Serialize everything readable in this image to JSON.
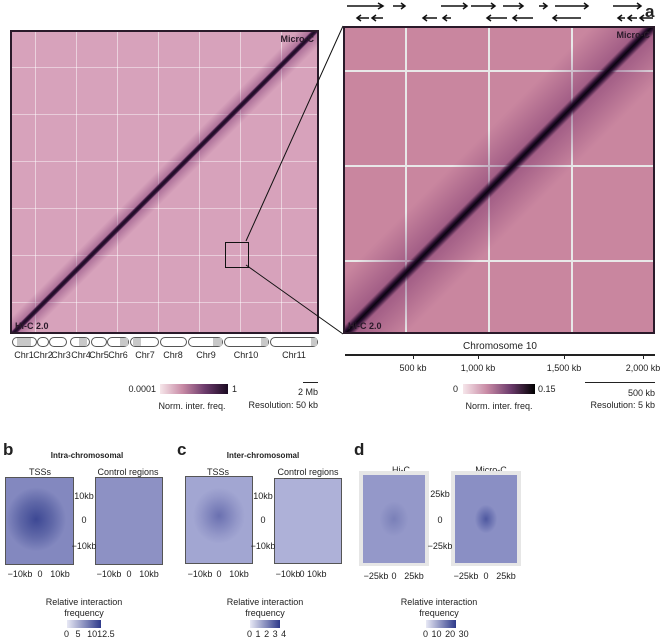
{
  "panel_a": {
    "label": "a",
    "left_map": {
      "top_label": "Micro-C",
      "bottom_label": "Hi-C 2.0",
      "chromosomes": [
        "Chr1",
        "Chr2",
        "Chr3",
        "Chr4",
        "Chr5",
        "Chr6",
        "Chr7",
        "Chr8",
        "Chr9",
        "Chr10",
        "Chr11"
      ],
      "colorbar": {
        "min": "0.0001",
        "max": "1",
        "title": "Norm. inter. freq."
      },
      "scale_bar": "2 Mb",
      "resolution": "Resolution: 50 kb"
    },
    "right_map": {
      "top_label": "Micro-C",
      "bottom_label": "Hi-C 2.0",
      "axis_title": "Chromosome 10",
      "ticks": [
        "500 kb",
        "1,000 kb",
        "1,500 kb",
        "2,000 kb"
      ],
      "colorbar": {
        "min": "0",
        "max": "0.15",
        "title": "Norm. inter. freq."
      },
      "scale_bar": "500 kb",
      "resolution": "Resolution: 5 kb"
    }
  },
  "panel_b": {
    "label": "b",
    "title": "Intra-chromosomal",
    "sub1": "TSSs",
    "sub2": "Control regions",
    "yticks": [
      "10kb",
      "0",
      "−10kb"
    ],
    "xticks": [
      "−10kb",
      "0",
      "10kb"
    ],
    "legend_title1": "Relative interaction",
    "legend_title2": "frequency",
    "legend_ticks": [
      "0",
      "5",
      "10",
      "12.5"
    ]
  },
  "panel_c": {
    "label": "c",
    "title": "Inter-chromosomal",
    "sub1": "TSSs",
    "sub2": "Control regions",
    "yticks": [
      "10kb",
      "0",
      "−10kb"
    ],
    "xticks": [
      "−10kb",
      "0",
      "10kb"
    ],
    "xticks2": [
      "−10kb",
      "0 10kb"
    ],
    "legend_title1": "Relative interaction",
    "legend_title2": "frequency",
    "legend_ticks": [
      "0",
      "1",
      "2",
      "3",
      "4"
    ]
  },
  "panel_d": {
    "label": "d",
    "sub1": "Hi-C",
    "sub2": "Micro-C",
    "yticks": [
      "25kb",
      "0",
      "−25kb"
    ],
    "xticks": [
      "−25kb",
      "0",
      "25kb"
    ],
    "legend_title1": "Relative interaction",
    "legend_title2": "frequency",
    "legend_ticks": [
      "0",
      "10",
      "20",
      "30"
    ]
  }
}
